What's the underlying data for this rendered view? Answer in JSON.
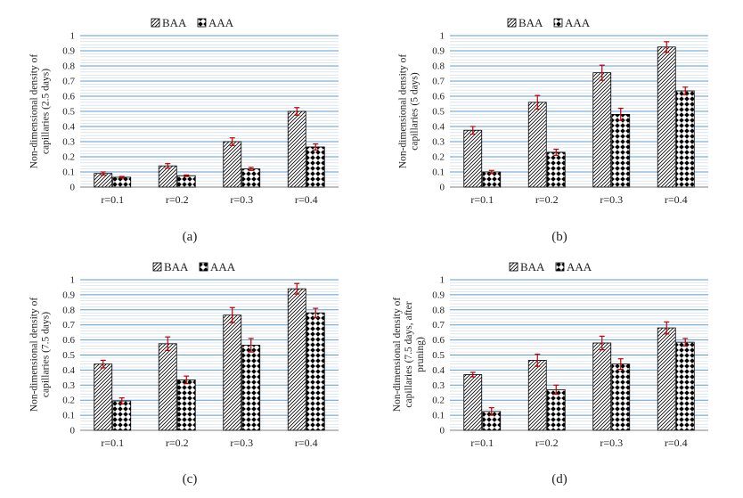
{
  "chart_data": [
    {
      "type": "bar",
      "panel_label": "(a)",
      "ylabel": "Non-dimensional density of capillaries (2.5 days)",
      "ylabel_lines": [
        "Non-dimensional density of",
        "capillaries (2.5 days)"
      ],
      "ylim": [
        0,
        1
      ],
      "yticks": [
        "0",
        "0.1",
        "0.2",
        "0.3",
        "0.4",
        "0.5",
        "0.6",
        "0.7",
        "0.8",
        "0.9",
        "1"
      ],
      "categories": [
        "r=0.1",
        "r=0.2",
        "r=0.3",
        "r=0.4"
      ],
      "series": [
        {
          "name": "BAA",
          "values": [
            0.09,
            0.14,
            0.3,
            0.5
          ],
          "errors": [
            0.01,
            0.015,
            0.025,
            0.025
          ]
        },
        {
          "name": "AAA",
          "values": [
            0.065,
            0.075,
            0.12,
            0.265
          ],
          "errors": [
            0.005,
            0.005,
            0.01,
            0.02
          ]
        }
      ]
    },
    {
      "type": "bar",
      "panel_label": "(b)",
      "ylabel": "Non-dimensional density of capillaries (5 days)",
      "ylabel_lines": [
        "Non-dimensional density of",
        "capillaries (5 days)"
      ],
      "ylim": [
        0,
        1
      ],
      "yticks": [
        "0",
        "0.1",
        "0.2",
        "0.3",
        "0.4",
        "0.5",
        "0.6",
        "0.7",
        "0.8",
        "0.9",
        "1"
      ],
      "categories": [
        "r=0.1",
        "r=0.2",
        "r=0.3",
        "r=0.4"
      ],
      "series": [
        {
          "name": "BAA",
          "values": [
            0.375,
            0.56,
            0.755,
            0.925
          ],
          "errors": [
            0.025,
            0.045,
            0.05,
            0.035
          ]
        },
        {
          "name": "AAA",
          "values": [
            0.1,
            0.23,
            0.48,
            0.635
          ],
          "errors": [
            0.01,
            0.02,
            0.04,
            0.025
          ]
        }
      ]
    },
    {
      "type": "bar",
      "panel_label": "(c)",
      "ylabel": "Non-dimensional density of capillaries (7.5 days)",
      "ylabel_lines": [
        "Non-dimensional density of",
        "capillaries (7.5 days)"
      ],
      "ylim": [
        0,
        1
      ],
      "yticks": [
        "0",
        "0.1",
        "0.2",
        "0.3",
        "0.4",
        "0.5",
        "0.6",
        "0.7",
        "0.8",
        "0.9",
        "1"
      ],
      "categories": [
        "r=0.1",
        "r=0.2",
        "r=0.3",
        "r=0.4"
      ],
      "series": [
        {
          "name": "BAA",
          "values": [
            0.44,
            0.575,
            0.765,
            0.94
          ],
          "errors": [
            0.025,
            0.045,
            0.05,
            0.035
          ]
        },
        {
          "name": "AAA",
          "values": [
            0.195,
            0.335,
            0.565,
            0.78
          ],
          "errors": [
            0.02,
            0.025,
            0.045,
            0.03
          ]
        }
      ]
    },
    {
      "type": "bar",
      "panel_label": "(d)",
      "ylabel": "Non-dimensional density of capillaries (7.5 days, after pruning)",
      "ylabel_lines": [
        "Non-dimensional density of",
        "capillaries (7.5 days, after",
        "pruning)"
      ],
      "ylim": [
        0,
        1
      ],
      "yticks": [
        "0",
        "0.1",
        "0.2",
        "0.3",
        "0.4",
        "0.5",
        "0.6",
        "0.7",
        "0.8",
        "0.9",
        "1"
      ],
      "categories": [
        "r=0.1",
        "r=0.2",
        "r=0.3",
        "r=0.4"
      ],
      "series": [
        {
          "name": "BAA",
          "values": [
            0.37,
            0.465,
            0.58,
            0.68
          ],
          "errors": [
            0.015,
            0.04,
            0.045,
            0.04
          ]
        },
        {
          "name": "AAA",
          "values": [
            0.125,
            0.27,
            0.44,
            0.585
          ],
          "errors": [
            0.025,
            0.03,
            0.035,
            0.025
          ]
        }
      ]
    }
  ],
  "colors": {
    "major_grid": "#5b9bd5",
    "minor_grid": "#c9d6e3",
    "error_bar": "#c00000",
    "bar_stroke": "#000000"
  }
}
